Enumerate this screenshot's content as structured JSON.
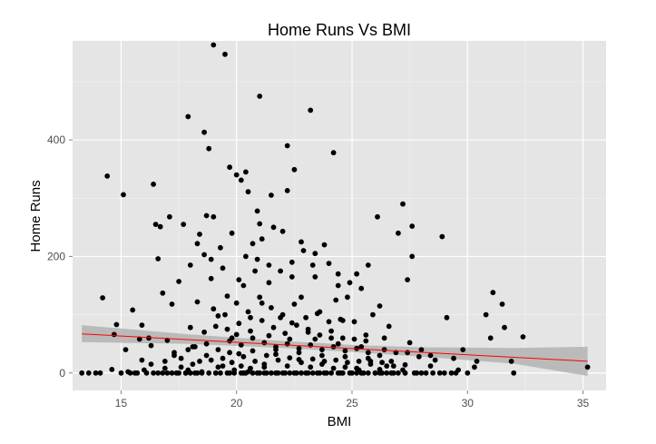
{
  "chart_data": {
    "type": "scatter",
    "title": "Home Runs Vs BMI",
    "xlabel": "BMI",
    "ylabel": "Home Runs",
    "xlim": [
      12.9,
      36.0
    ],
    "ylim": [
      -30,
      570
    ],
    "xticks": [
      15,
      20,
      25,
      30,
      35
    ],
    "yticks": [
      0,
      200,
      400
    ],
    "grid": true,
    "legend": "none",
    "colors": {
      "panel": "#e5e5e5",
      "grid_major": "#ffffff",
      "grid_minor": "#f2f2f2",
      "points": "#000000",
      "trend_line": "#ff0000",
      "confidence_band": "#b3b3b3"
    },
    "trend_line": {
      "x": [
        13.3,
        35.2
      ],
      "y": [
        67,
        20
      ]
    },
    "confidence_band": {
      "x": [
        13.3,
        18,
        22,
        25,
        28,
        32,
        35.2
      ],
      "lower": [
        53,
        50,
        43,
        36,
        28,
        16,
        -5
      ],
      "upper": [
        82,
        66,
        55,
        48,
        44,
        43,
        45
      ]
    },
    "points": [
      [
        13.3,
        0
      ],
      [
        13.6,
        0
      ],
      [
        13.9,
        0
      ],
      [
        14.1,
        0
      ],
      [
        14.2,
        129
      ],
      [
        14.4,
        338
      ],
      [
        14.6,
        6
      ],
      [
        14.7,
        66
      ],
      [
        14.8,
        83
      ],
      [
        15.0,
        0
      ],
      [
        15.1,
        306
      ],
      [
        15.2,
        40
      ],
      [
        15.3,
        2
      ],
      [
        15.4,
        0
      ],
      [
        15.5,
        108
      ],
      [
        15.6,
        0
      ],
      [
        15.7,
        0
      ],
      [
        15.8,
        58
      ],
      [
        15.9,
        82
      ],
      [
        16.0,
        5
      ],
      [
        16.1,
        0
      ],
      [
        16.2,
        60
      ],
      [
        16.3,
        47
      ],
      [
        16.4,
        0
      ],
      [
        16.4,
        324
      ],
      [
        16.5,
        255
      ],
      [
        16.6,
        196
      ],
      [
        16.7,
        251
      ],
      [
        16.8,
        137
      ],
      [
        16.9,
        8
      ],
      [
        17.0,
        56
      ],
      [
        17.1,
        268
      ],
      [
        17.2,
        118
      ],
      [
        17.3,
        30
      ],
      [
        17.4,
        0
      ],
      [
        17.5,
        157
      ],
      [
        17.6,
        10
      ],
      [
        17.7,
        255
      ],
      [
        17.8,
        0
      ],
      [
        17.9,
        5
      ],
      [
        17.9,
        440
      ],
      [
        18.0,
        185
      ],
      [
        18.0,
        78
      ],
      [
        18.1,
        45
      ],
      [
        18.2,
        0
      ],
      [
        18.3,
        122
      ],
      [
        18.4,
        238
      ],
      [
        18.5,
        2
      ],
      [
        18.6,
        203
      ],
      [
        18.6,
        413
      ],
      [
        18.7,
        270
      ],
      [
        18.8,
        385
      ],
      [
        18.9,
        162
      ],
      [
        19.0,
        563
      ],
      [
        19.0,
        268
      ],
      [
        19.1,
        0
      ],
      [
        19.2,
        98
      ],
      [
        19.3,
        215
      ],
      [
        19.4,
        12
      ],
      [
        19.5,
        547
      ],
      [
        19.6,
        132
      ],
      [
        19.7,
        0
      ],
      [
        19.7,
        353
      ],
      [
        19.8,
        60
      ],
      [
        19.9,
        5
      ],
      [
        20.0,
        340
      ],
      [
        20.1,
        160
      ],
      [
        20.1,
        33
      ],
      [
        20.2,
        331
      ],
      [
        20.3,
        150
      ],
      [
        20.3,
        0
      ],
      [
        20.4,
        345
      ],
      [
        20.5,
        311
      ],
      [
        20.5,
        2
      ],
      [
        20.6,
        8
      ],
      [
        20.7,
        222
      ],
      [
        20.8,
        175
      ],
      [
        20.9,
        0
      ],
      [
        21.0,
        256
      ],
      [
        21.0,
        475
      ],
      [
        21.1,
        120
      ],
      [
        21.2,
        10
      ],
      [
        21.3,
        0
      ],
      [
        21.4,
        155
      ],
      [
        21.5,
        305
      ],
      [
        21.6,
        250
      ],
      [
        21.7,
        40
      ],
      [
        21.8,
        0
      ],
      [
        21.9,
        95
      ],
      [
        22.0,
        243
      ],
      [
        22.1,
        0
      ],
      [
        22.2,
        313
      ],
      [
        22.2,
        390
      ],
      [
        22.3,
        58
      ],
      [
        22.4,
        165
      ],
      [
        22.5,
        349
      ],
      [
        22.6,
        0
      ],
      [
        22.7,
        23
      ],
      [
        22.8,
        130
      ],
      [
        22.9,
        210
      ],
      [
        23.0,
        0
      ],
      [
        23.1,
        75
      ],
      [
        23.2,
        451
      ],
      [
        23.3,
        185
      ],
      [
        23.4,
        205
      ],
      [
        23.5,
        0
      ],
      [
        23.6,
        105
      ],
      [
        23.7,
        15
      ],
      [
        23.8,
        220
      ],
      [
        23.9,
        0
      ],
      [
        24.0,
        188
      ],
      [
        24.1,
        60
      ],
      [
        24.2,
        378
      ],
      [
        24.3,
        125
      ],
      [
        24.4,
        150
      ],
      [
        24.5,
        0
      ],
      [
        24.6,
        90
      ],
      [
        24.7,
        10
      ],
      [
        24.8,
        130
      ],
      [
        24.9,
        155
      ],
      [
        25.0,
        0
      ],
      [
        25.1,
        88
      ],
      [
        25.2,
        170
      ],
      [
        25.3,
        5
      ],
      [
        25.4,
        145
      ],
      [
        25.5,
        0
      ],
      [
        25.6,
        65
      ],
      [
        25.7,
        185
      ],
      [
        25.8,
        20
      ],
      [
        25.9,
        100
      ],
      [
        26.0,
        0
      ],
      [
        26.1,
        268
      ],
      [
        26.2,
        115
      ],
      [
        26.3,
        0
      ],
      [
        26.4,
        60
      ],
      [
        26.5,
        12
      ],
      [
        26.6,
        80
      ],
      [
        26.7,
        0
      ],
      [
        26.9,
        35
      ],
      [
        27.0,
        240
      ],
      [
        27.2,
        290
      ],
      [
        27.3,
        0
      ],
      [
        27.4,
        160
      ],
      [
        27.5,
        52
      ],
      [
        27.6,
        200
      ],
      [
        27.6,
        252
      ],
      [
        27.8,
        0
      ],
      [
        27.9,
        28
      ],
      [
        28.0,
        40
      ],
      [
        28.2,
        0
      ],
      [
        28.4,
        12
      ],
      [
        28.6,
        22
      ],
      [
        28.8,
        0
      ],
      [
        28.9,
        234
      ],
      [
        29.1,
        95
      ],
      [
        29.3,
        0
      ],
      [
        29.6,
        5
      ],
      [
        29.8,
        40
      ],
      [
        30.0,
        0
      ],
      [
        30.3,
        10
      ],
      [
        30.8,
        100
      ],
      [
        31.0,
        60
      ],
      [
        31.1,
        138
      ],
      [
        31.5,
        118
      ],
      [
        31.6,
        78
      ],
      [
        31.9,
        20
      ],
      [
        32.0,
        0
      ],
      [
        32.4,
        62
      ],
      [
        35.2,
        10
      ],
      [
        18.5,
        0
      ],
      [
        18.8,
        0
      ],
      [
        19.1,
        0
      ],
      [
        19.3,
        0
      ],
      [
        19.6,
        0
      ],
      [
        19.9,
        0
      ],
      [
        20.2,
        0
      ],
      [
        20.4,
        0
      ],
      [
        20.7,
        0
      ],
      [
        21.0,
        0
      ],
      [
        21.2,
        0
      ],
      [
        21.5,
        0
      ],
      [
        21.7,
        0
      ],
      [
        22.0,
        0
      ],
      [
        22.3,
        0
      ],
      [
        22.5,
        0
      ],
      [
        22.8,
        0
      ],
      [
        23.1,
        0
      ],
      [
        23.3,
        0
      ],
      [
        23.6,
        0
      ],
      [
        23.8,
        0
      ],
      [
        24.1,
        0
      ],
      [
        24.4,
        0
      ],
      [
        24.6,
        0
      ],
      [
        24.9,
        0
      ],
      [
        25.2,
        0
      ],
      [
        25.4,
        0
      ],
      [
        25.7,
        0
      ],
      [
        26.0,
        0
      ],
      [
        26.2,
        0
      ],
      [
        26.5,
        0
      ],
      [
        26.8,
        0
      ],
      [
        27.0,
        0
      ],
      [
        27.3,
        0
      ],
      [
        27.7,
        0
      ],
      [
        28.0,
        0
      ],
      [
        28.5,
        0
      ],
      [
        29.0,
        0
      ],
      [
        29.5,
        0
      ],
      [
        17.2,
        0
      ],
      [
        17.5,
        0
      ],
      [
        17.8,
        0
      ],
      [
        18.0,
        0
      ],
      [
        18.3,
        0
      ],
      [
        16.8,
        0
      ],
      [
        17.0,
        0
      ],
      [
        16.6,
        0
      ],
      [
        18.4,
        20
      ],
      [
        18.9,
        22
      ],
      [
        19.4,
        25
      ],
      [
        19.8,
        18
      ],
      [
        20.3,
        28
      ],
      [
        20.8,
        20
      ],
      [
        21.3,
        30
      ],
      [
        21.8,
        22
      ],
      [
        22.3,
        26
      ],
      [
        22.8,
        18
      ],
      [
        23.3,
        24
      ],
      [
        23.8,
        20
      ],
      [
        24.3,
        22
      ],
      [
        24.8,
        18
      ],
      [
        25.3,
        20
      ],
      [
        25.8,
        15
      ],
      [
        26.3,
        18
      ],
      [
        26.8,
        12
      ],
      [
        27.3,
        14
      ],
      [
        18.2,
        45
      ],
      [
        18.7,
        50
      ],
      [
        19.2,
        40
      ],
      [
        19.7,
        55
      ],
      [
        20.2,
        48
      ],
      [
        20.7,
        60
      ],
      [
        21.2,
        52
      ],
      [
        21.7,
        45
      ],
      [
        22.2,
        50
      ],
      [
        22.7,
        42
      ],
      [
        23.2,
        48
      ],
      [
        23.7,
        40
      ],
      [
        24.2,
        45
      ],
      [
        24.7,
        38
      ],
      [
        25.2,
        42
      ],
      [
        25.7,
        35
      ],
      [
        26.2,
        30
      ],
      [
        18.6,
        70
      ],
      [
        19.1,
        80
      ],
      [
        19.6,
        75
      ],
      [
        20.1,
        85
      ],
      [
        20.6,
        72
      ],
      [
        21.1,
        90
      ],
      [
        21.6,
        78
      ],
      [
        22.1,
        68
      ],
      [
        22.6,
        82
      ],
      [
        23.1,
        70
      ],
      [
        23.6,
        65
      ],
      [
        24.1,
        72
      ],
      [
        24.6,
        60
      ],
      [
        25.1,
        58
      ],
      [
        25.6,
        55
      ],
      [
        19.0,
        110
      ],
      [
        19.5,
        100
      ],
      [
        20.0,
        120
      ],
      [
        20.5,
        105
      ],
      [
        21.0,
        130
      ],
      [
        21.5,
        112
      ],
      [
        22.0,
        100
      ],
      [
        22.5,
        118
      ],
      [
        23.0,
        95
      ],
      [
        23.5,
        102
      ],
      [
        24.0,
        88
      ],
      [
        24.5,
        92
      ],
      [
        18.7,
        30
      ],
      [
        19.2,
        10
      ],
      [
        19.7,
        35
      ],
      [
        20.2,
        12
      ],
      [
        20.7,
        38
      ],
      [
        21.2,
        15
      ],
      [
        21.7,
        32
      ],
      [
        22.2,
        12
      ],
      [
        22.7,
        35
      ],
      [
        23.2,
        10
      ],
      [
        23.7,
        30
      ],
      [
        24.2,
        8
      ],
      [
        24.7,
        28
      ],
      [
        25.2,
        8
      ],
      [
        25.7,
        25
      ],
      [
        26.2,
        6
      ],
      [
        26.7,
        20
      ],
      [
        27.2,
        5
      ],
      [
        17.6,
        25
      ],
      [
        17.9,
        40
      ],
      [
        18.1,
        15
      ],
      [
        16.9,
        20
      ],
      [
        17.3,
        35
      ],
      [
        16.3,
        15
      ],
      [
        15.9,
        22
      ],
      [
        20.4,
        200
      ],
      [
        20.9,
        195
      ],
      [
        21.4,
        185
      ],
      [
        21.9,
        175
      ],
      [
        22.4,
        190
      ],
      [
        19.4,
        180
      ],
      [
        18.9,
        195
      ],
      [
        23.4,
        165
      ],
      [
        24.4,
        170
      ],
      [
        21.1,
        230
      ],
      [
        19.8,
        240
      ],
      [
        20.9,
        278
      ],
      [
        18.3,
        222
      ],
      [
        22.8,
        225
      ],
      [
        20.0,
        66
      ],
      [
        20.6,
        95
      ],
      [
        21.4,
        64
      ],
      [
        22.4,
        86
      ],
      [
        23.4,
        58
      ],
      [
        24.4,
        50
      ],
      [
        25.4,
        45
      ],
      [
        26.4,
        40
      ],
      [
        27.4,
        35
      ],
      [
        28.4,
        30
      ],
      [
        29.4,
        25
      ],
      [
        30.4,
        20
      ]
    ]
  }
}
